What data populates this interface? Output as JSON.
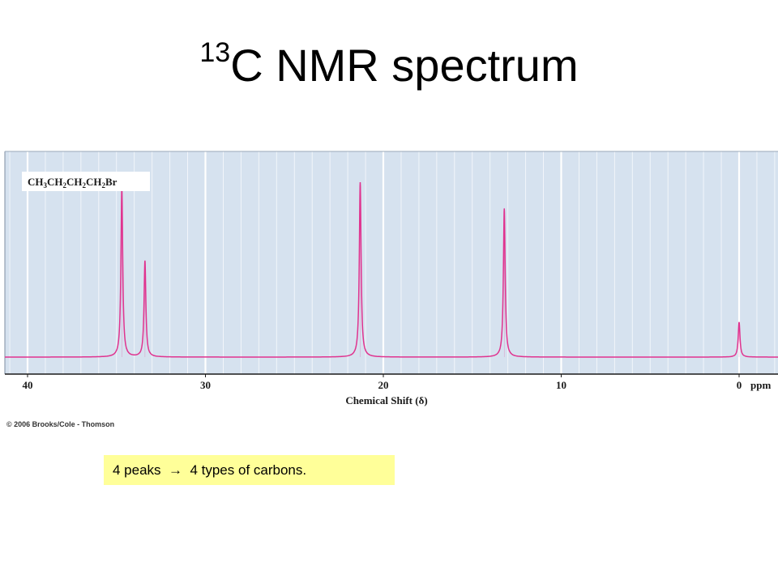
{
  "slide": {
    "title_superscript": "13",
    "title_main": "C NMR spectrum",
    "copyright": "© 2006 Brooks/Cole - Thomson",
    "callout": {
      "left": "4 peaks",
      "arrow": "→",
      "right": "4 types of carbons."
    }
  },
  "chart_data": {
    "type": "line",
    "compound_label": {
      "parts": [
        "CH",
        "3",
        "CH",
        "2",
        "CH",
        "2",
        "CH",
        "2",
        "Br"
      ]
    },
    "xlabel": "Chemical Shift (δ)",
    "x_unit": "ppm",
    "xlim": [
      41,
      -2.2
    ],
    "x_reversed": true,
    "x_ticks": [
      40,
      30,
      20,
      10,
      0
    ],
    "x_tick_labels": [
      "40",
      "30",
      "20",
      "10",
      "0"
    ],
    "baseline": 0,
    "ylim": [
      0,
      1
    ],
    "series": [
      {
        "peaks": [
          {
            "shift": 34.7,
            "intensity": 0.97
          },
          {
            "shift": 33.4,
            "intensity": 0.55
          },
          {
            "shift": 21.3,
            "intensity": 1.0
          },
          {
            "shift": 13.2,
            "intensity": 0.85
          },
          {
            "shift": 0.0,
            "intensity": 0.2
          }
        ]
      }
    ],
    "colors": {
      "background": "#d6e2ef",
      "grid": "#ffffff",
      "line": "#e0338f",
      "axis": "#1a1a1a"
    }
  }
}
